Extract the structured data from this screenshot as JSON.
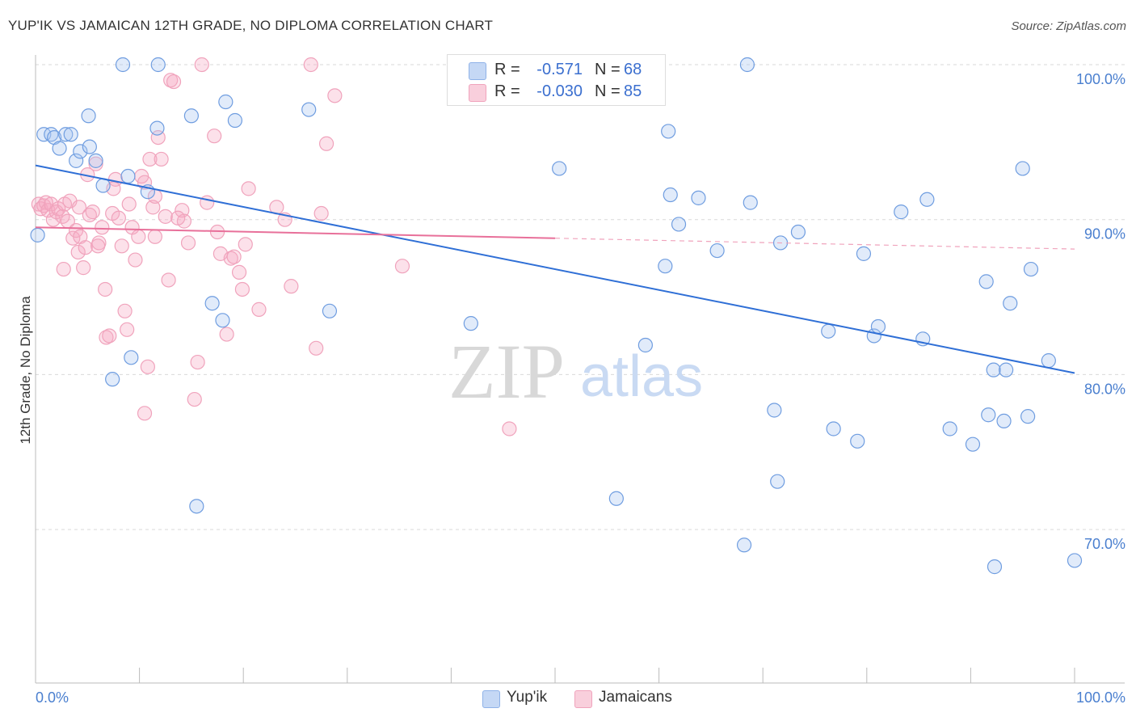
{
  "header": {
    "title": "YUP'IK VS JAMAICAN 12TH GRADE, NO DIPLOMA CORRELATION CHART",
    "source": "Source: ZipAtlas.com"
  },
  "legend": {
    "rows": [
      {
        "r_label": "R =",
        "r_value": "-0.571",
        "n_label": "N =",
        "n_value": "68"
      },
      {
        "r_label": "R =",
        "r_value": "-0.030",
        "n_label": "N =",
        "n_value": "85"
      }
    ],
    "bottom": [
      "Yup'ik",
      "Jamaicans"
    ]
  },
  "watermark": {
    "zip": "ZIP",
    "atlas": "atlas"
  },
  "chart_data": {
    "type": "scatter",
    "title": "YUP'IK VS JAMAICAN 12TH GRADE, NO DIPLOMA CORRELATION CHART",
    "ylabel": "12th Grade, No Diploma",
    "xlabel": "",
    "x_tick_labels": [
      "0.0%",
      "100.0%"
    ],
    "y_tick_labels": [
      "100.0%",
      "90.0%",
      "80.0%",
      "70.0%"
    ],
    "y_ticks": [
      100,
      90,
      80,
      70
    ],
    "xlim": [
      0,
      100
    ],
    "ylim": [
      60,
      104
    ],
    "grid": true,
    "colors": {
      "yupik": "#5a8fdc",
      "jamaicans": "#f08aab",
      "yupik_line": "#2f6fd6",
      "jamaicans_line": "#e8709a"
    },
    "series": [
      {
        "name": "Yup'ik",
        "r": -0.571,
        "n": 68,
        "trend": {
          "x": [
            0,
            100
          ],
          "y": [
            93.5,
            80.1
          ]
        },
        "points": [
          [
            0.2,
            89.0
          ],
          [
            0.8,
            95.5
          ],
          [
            1.5,
            95.5
          ],
          [
            1.8,
            95.3
          ],
          [
            2.3,
            94.6
          ],
          [
            2.9,
            95.5
          ],
          [
            3.4,
            95.5
          ],
          [
            3.9,
            93.8
          ],
          [
            4.3,
            94.4
          ],
          [
            5.2,
            94.7
          ],
          [
            5.1,
            96.7
          ],
          [
            5.8,
            93.8
          ],
          [
            6.5,
            92.2
          ],
          [
            8.4,
            100.0
          ],
          [
            8.9,
            92.8
          ],
          [
            9.2,
            81.1
          ],
          [
            7.4,
            79.7
          ],
          [
            10.8,
            91.8
          ],
          [
            11.7,
            95.9
          ],
          [
            11.8,
            100.0
          ],
          [
            15.0,
            96.7
          ],
          [
            15.5,
            71.5
          ],
          [
            17.0,
            84.6
          ],
          [
            18.0,
            83.5
          ],
          [
            18.3,
            97.6
          ],
          [
            19.2,
            96.4
          ],
          [
            26.3,
            97.1
          ],
          [
            28.3,
            84.1
          ],
          [
            41.9,
            83.3
          ],
          [
            50.4,
            93.3
          ],
          [
            55.9,
            72.0
          ],
          [
            58.7,
            81.9
          ],
          [
            60.9,
            95.7
          ],
          [
            60.6,
            87.0
          ],
          [
            61.1,
            91.6
          ],
          [
            61.9,
            89.7
          ],
          [
            63.8,
            91.4
          ],
          [
            65.6,
            88.0
          ],
          [
            68.2,
            69.0
          ],
          [
            68.5,
            100.0
          ],
          [
            68.8,
            91.1
          ],
          [
            71.1,
            77.7
          ],
          [
            71.4,
            73.1
          ],
          [
            71.7,
            88.5
          ],
          [
            73.4,
            89.2
          ],
          [
            76.3,
            82.8
          ],
          [
            76.8,
            76.5
          ],
          [
            79.1,
            75.7
          ],
          [
            79.7,
            87.8
          ],
          [
            80.7,
            82.5
          ],
          [
            81.1,
            83.1
          ],
          [
            83.3,
            90.5
          ],
          [
            85.4,
            82.3
          ],
          [
            85.8,
            91.3
          ],
          [
            88.0,
            76.5
          ],
          [
            90.2,
            75.5
          ],
          [
            91.5,
            86.0
          ],
          [
            91.7,
            77.4
          ],
          [
            92.2,
            80.3
          ],
          [
            93.4,
            80.3
          ],
          [
            93.2,
            77.0
          ],
          [
            93.8,
            84.6
          ],
          [
            95.0,
            93.3
          ],
          [
            95.5,
            77.3
          ],
          [
            95.8,
            86.8
          ],
          [
            97.5,
            80.9
          ],
          [
            92.3,
            67.6
          ],
          [
            100.0,
            68.0
          ]
        ]
      },
      {
        "name": "Jamaicans",
        "r": -0.03,
        "n": 85,
        "trend": {
          "x": [
            0,
            50
          ],
          "y": [
            89.5,
            88.8
          ]
        },
        "trend_dashed": {
          "x": [
            50,
            100
          ],
          "y": [
            88.8,
            88.1
          ]
        },
        "points": [
          [
            0.3,
            91.0
          ],
          [
            0.5,
            90.7
          ],
          [
            0.8,
            90.9
          ],
          [
            1.0,
            91.1
          ],
          [
            1.2,
            90.6
          ],
          [
            1.5,
            91.0
          ],
          [
            1.7,
            90.0
          ],
          [
            2.0,
            90.5
          ],
          [
            2.2,
            90.7
          ],
          [
            2.6,
            90.2
          ],
          [
            2.8,
            91.0
          ],
          [
            3.1,
            89.9
          ],
          [
            2.7,
            86.8
          ],
          [
            3.3,
            91.2
          ],
          [
            3.6,
            88.8
          ],
          [
            3.9,
            89.3
          ],
          [
            4.1,
            87.9
          ],
          [
            4.3,
            88.9
          ],
          [
            4.6,
            86.9
          ],
          [
            4.8,
            88.2
          ],
          [
            5.0,
            92.9
          ],
          [
            5.2,
            90.3
          ],
          [
            5.5,
            90.5
          ],
          [
            5.8,
            93.6
          ],
          [
            6.1,
            88.5
          ],
          [
            6.4,
            89.5
          ],
          [
            6.7,
            85.5
          ],
          [
            6.8,
            82.4
          ],
          [
            7.1,
            82.5
          ],
          [
            7.4,
            90.4
          ],
          [
            7.7,
            92.6
          ],
          [
            8.0,
            90.1
          ],
          [
            8.3,
            88.3
          ],
          [
            8.6,
            84.1
          ],
          [
            8.8,
            82.9
          ],
          [
            9.0,
            91.0
          ],
          [
            9.3,
            89.5
          ],
          [
            9.6,
            87.4
          ],
          [
            9.9,
            88.9
          ],
          [
            10.2,
            92.8
          ],
          [
            10.5,
            92.4
          ],
          [
            10.8,
            80.5
          ],
          [
            11.0,
            93.9
          ],
          [
            11.3,
            90.8
          ],
          [
            11.5,
            88.9
          ],
          [
            11.8,
            95.3
          ],
          [
            12.1,
            93.9
          ],
          [
            12.5,
            90.2
          ],
          [
            12.8,
            86.1
          ],
          [
            13.0,
            99.0
          ],
          [
            13.3,
            98.9
          ],
          [
            14.1,
            90.6
          ],
          [
            14.3,
            89.9
          ],
          [
            14.7,
            88.5
          ],
          [
            15.3,
            78.4
          ],
          [
            15.6,
            80.8
          ],
          [
            16.0,
            100.0
          ],
          [
            16.5,
            91.1
          ],
          [
            17.2,
            95.4
          ],
          [
            17.5,
            89.2
          ],
          [
            17.8,
            87.8
          ],
          [
            18.4,
            82.6
          ],
          [
            18.8,
            87.5
          ],
          [
            19.1,
            87.6
          ],
          [
            19.6,
            86.6
          ],
          [
            19.9,
            85.5
          ],
          [
            20.2,
            88.4
          ],
          [
            20.5,
            92.0
          ],
          [
            21.5,
            84.2
          ],
          [
            23.2,
            90.8
          ],
          [
            24.0,
            90.0
          ],
          [
            24.6,
            85.7
          ],
          [
            26.5,
            100.0
          ],
          [
            27.0,
            81.7
          ],
          [
            27.5,
            90.4
          ],
          [
            28.0,
            94.9
          ],
          [
            28.8,
            98.0
          ],
          [
            35.3,
            87.0
          ],
          [
            45.6,
            76.5
          ],
          [
            10.5,
            77.5
          ],
          [
            6.0,
            88.3
          ],
          [
            7.5,
            92.0
          ],
          [
            11.5,
            91.5
          ],
          [
            13.7,
            90.1
          ],
          [
            4.2,
            90.8
          ]
        ]
      }
    ]
  }
}
